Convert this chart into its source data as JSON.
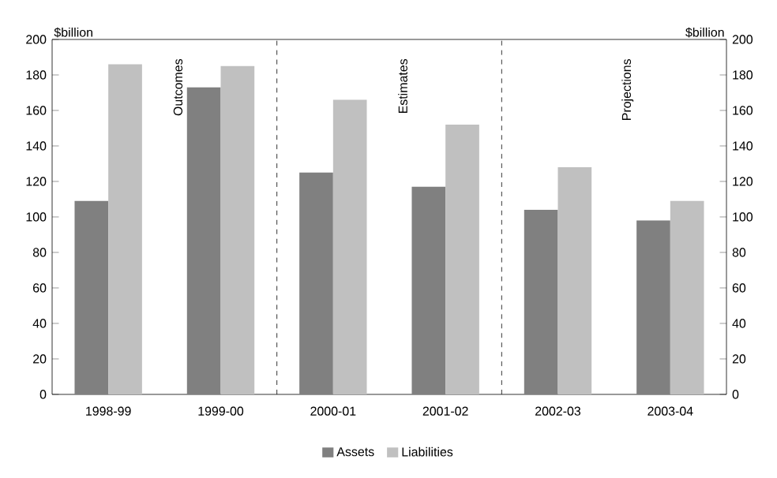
{
  "chart_data": {
    "type": "bar",
    "ylabel": "$billion",
    "y2label": "$billion",
    "categories": [
      "1998-99",
      "1999-00",
      "2000-01",
      "2001-02",
      "2002-03",
      "2003-04"
    ],
    "series": [
      {
        "name": "Assets",
        "color": "#808080",
        "values": [
          109,
          173,
          125,
          117,
          104,
          98
        ]
      },
      {
        "name": "Liabilities",
        "color": "#c0c0c0",
        "values": [
          186,
          185,
          166,
          152,
          128,
          109
        ]
      }
    ],
    "ylim": [
      0,
      200
    ],
    "yticks": [
      0,
      20,
      40,
      60,
      80,
      100,
      120,
      140,
      160,
      180,
      200
    ],
    "y2lim": [
      0,
      200
    ],
    "y2ticks": [
      0,
      20,
      40,
      60,
      80,
      100,
      120,
      140,
      160,
      180,
      200
    ],
    "annotations": [
      "Outcomes",
      "Estimates",
      "Projections"
    ],
    "grid": false,
    "legend": "bottom"
  }
}
